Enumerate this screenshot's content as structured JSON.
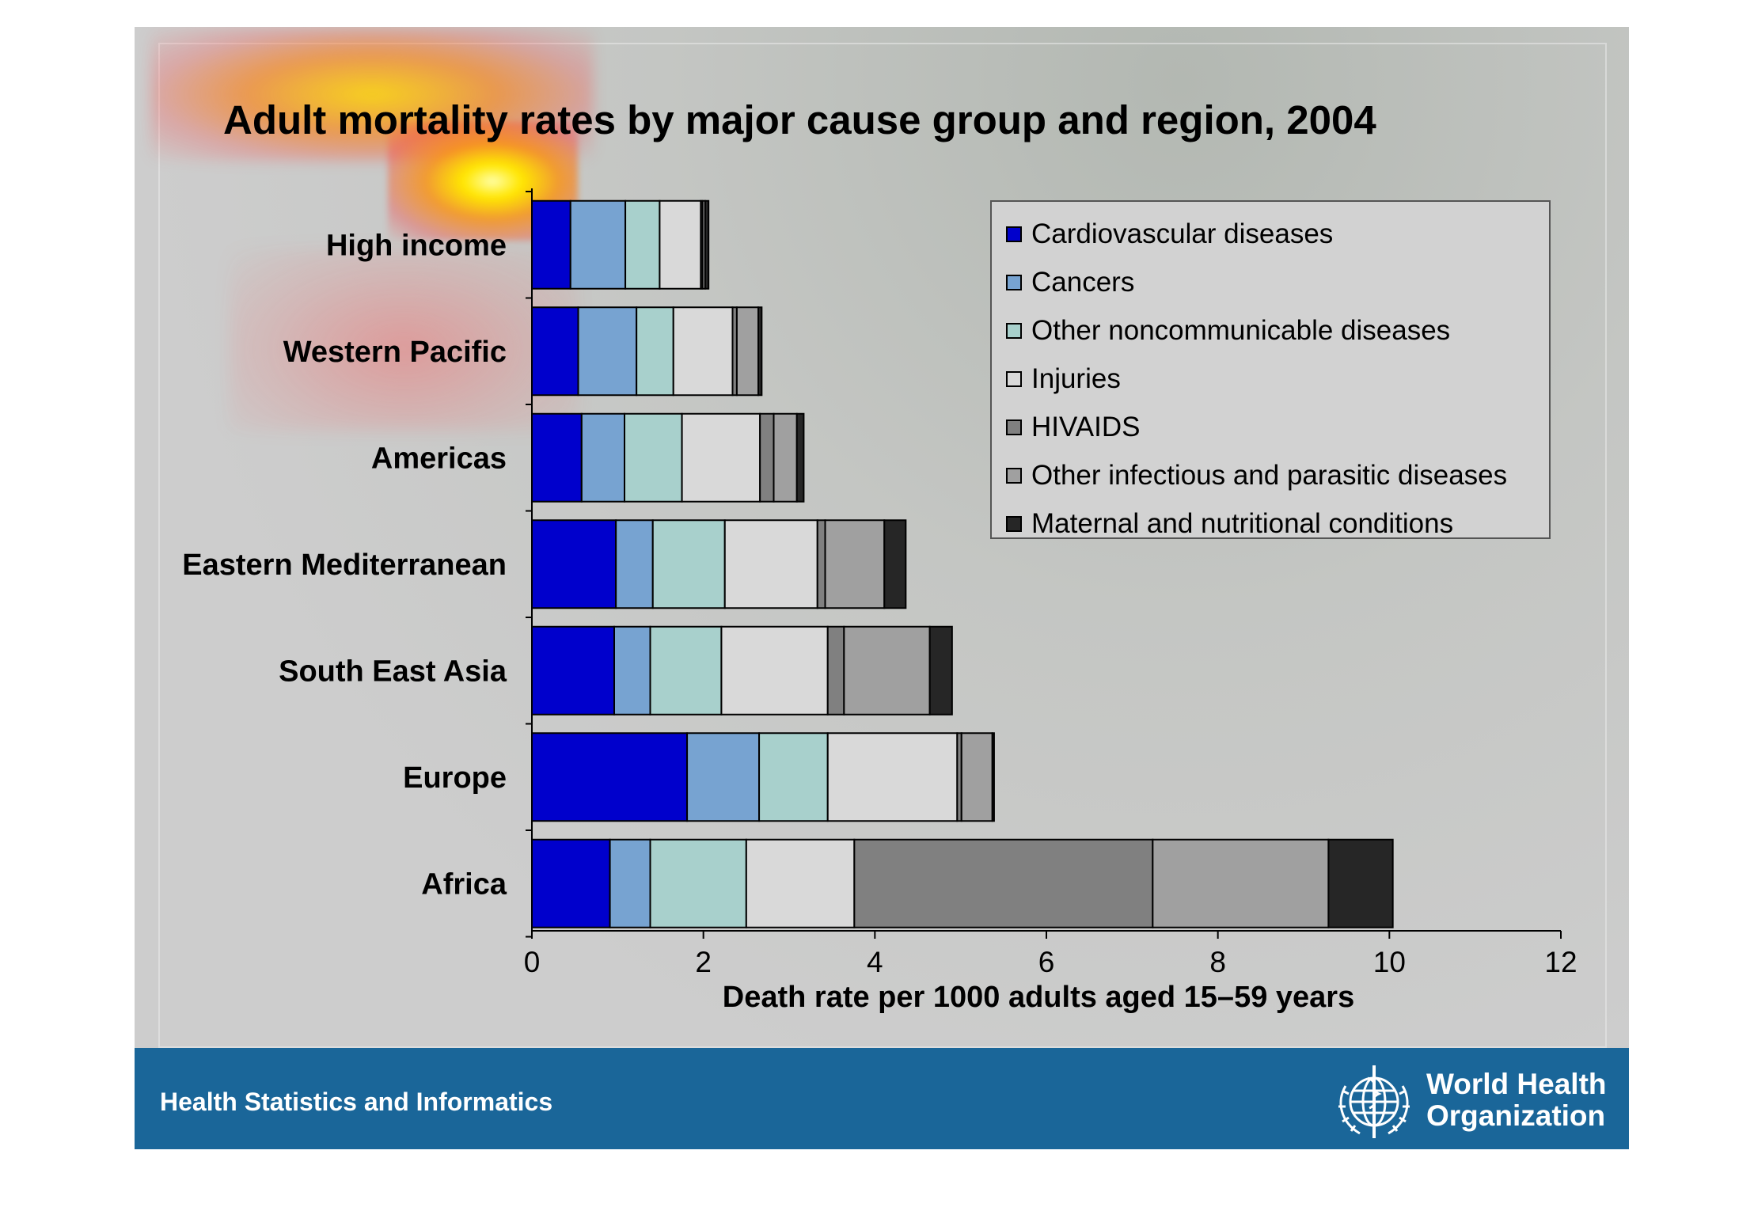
{
  "chart_data": {
    "type": "bar",
    "orientation": "horizontal",
    "stacked": true,
    "title": "Adult mortality rates by major cause group and region, 2004",
    "xlabel": "Death rate per 1000 adults aged 15–59 years",
    "ylabel": "",
    "xlim": [
      0,
      12
    ],
    "x_ticks": [
      "0",
      "2",
      "4",
      "6",
      "8",
      "10",
      "12"
    ],
    "grid": false,
    "legend_position": "top-right",
    "categories": [
      "High income",
      "Western Pacific",
      "Americas",
      "Eastern Mediterranean",
      "South East Asia",
      "Europe",
      "Africa"
    ],
    "series": [
      {
        "name": "Cardiovascular diseases",
        "color": "#0000cc",
        "values": [
          0.45,
          0.54,
          0.58,
          0.98,
          0.96,
          1.81,
          0.91
        ]
      },
      {
        "name": "Cancers",
        "color": "#77a3d1",
        "values": [
          0.64,
          0.68,
          0.5,
          0.43,
          0.42,
          0.84,
          0.47
        ]
      },
      {
        "name": "Other noncommunicable diseases",
        "color": "#a8d0cc",
        "values": [
          0.4,
          0.43,
          0.67,
          0.84,
          0.83,
          0.8,
          1.12
        ]
      },
      {
        "name": "Injuries",
        "color": "#d9d9d9",
        "values": [
          0.48,
          0.69,
          0.91,
          1.08,
          1.24,
          1.51,
          1.26
        ]
      },
      {
        "name": "HIVAIDS",
        "color": "#808080",
        "values": [
          0.02,
          0.05,
          0.16,
          0.09,
          0.19,
          0.05,
          3.48
        ]
      },
      {
        "name": "Other infectious and parasitic diseases",
        "color": "#a0a0a0",
        "values": [
          0.03,
          0.25,
          0.27,
          0.69,
          1.0,
          0.36,
          2.05
        ]
      },
      {
        "name": "Maternal and nutritional conditions",
        "color": "#262626",
        "values": [
          0.04,
          0.04,
          0.08,
          0.25,
          0.26,
          0.02,
          0.75
        ]
      }
    ]
  },
  "footer": {
    "left_text": "Health Statistics and Informatics",
    "org_name_line1": "World Health",
    "org_name_line2": "Organization"
  },
  "icons": {
    "emblem": "who-emblem-icon"
  }
}
